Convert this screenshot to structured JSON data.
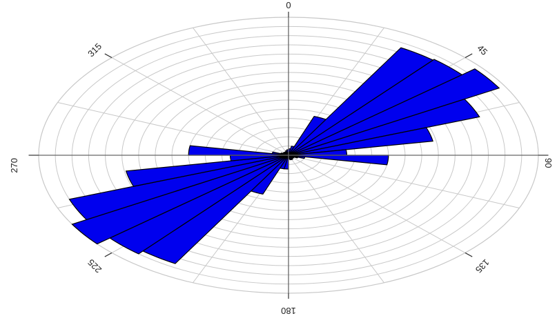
{
  "chart_data": {
    "type": "rose",
    "title": "",
    "bin_width_deg": 10,
    "angular_ticks": [
      {
        "angle": 0,
        "label": "0"
      },
      {
        "angle": 45,
        "label": "45"
      },
      {
        "angle": 90,
        "label": "90"
      },
      {
        "angle": 135,
        "label": "135"
      },
      {
        "angle": 180,
        "label": "180"
      },
      {
        "angle": 225,
        "label": "225"
      },
      {
        "angle": 270,
        "label": "270"
      },
      {
        "angle": 315,
        "label": "315"
      }
    ],
    "radial_rings": 15,
    "radial_max": 15,
    "spokes_every_deg": 22.5,
    "grid": true,
    "bins": [
      {
        "start": 0,
        "value": 0.7
      },
      {
        "start": 10,
        "value": 1.0
      },
      {
        "start": 20,
        "value": 4.5
      },
      {
        "start": 30,
        "value": 13.5
      },
      {
        "start": 40,
        "value": 13.6
      },
      {
        "start": 50,
        "value": 14.6
      },
      {
        "start": 60,
        "value": 12.2
      },
      {
        "start": 70,
        "value": 8.8
      },
      {
        "start": 80,
        "value": 3.5
      },
      {
        "start": 90,
        "value": 6.0
      },
      {
        "start": 100,
        "value": 1.0
      },
      {
        "start": 110,
        "value": 0.6
      },
      {
        "start": 120,
        "value": 0.4
      },
      {
        "start": 130,
        "value": 0.4
      },
      {
        "start": 140,
        "value": 0.4
      },
      {
        "start": 150,
        "value": 0.5
      },
      {
        "start": 160,
        "value": 0.5
      },
      {
        "start": 170,
        "value": 0.4
      },
      {
        "start": 180,
        "value": 1.5
      },
      {
        "start": 190,
        "value": 1.5
      },
      {
        "start": 200,
        "value": 4.5
      },
      {
        "start": 210,
        "value": 13.6
      },
      {
        "start": 220,
        "value": 14.0
      },
      {
        "start": 230,
        "value": 15.0
      },
      {
        "start": 240,
        "value": 14.0
      },
      {
        "start": 250,
        "value": 9.9
      },
      {
        "start": 260,
        "value": 3.5
      },
      {
        "start": 270,
        "value": 6.0
      },
      {
        "start": 280,
        "value": 1.0
      },
      {
        "start": 290,
        "value": 0.5
      },
      {
        "start": 300,
        "value": 0.4
      },
      {
        "start": 310,
        "value": 0.4
      },
      {
        "start": 320,
        "value": 0.4
      },
      {
        "start": 330,
        "value": 0.4
      },
      {
        "start": 340,
        "value": 0.5
      },
      {
        "start": 350,
        "value": 0.6
      }
    ],
    "colors": {
      "petal_fill": "#0000ee",
      "petal_stroke": "#000000",
      "grid": "#c8c8c8",
      "axis": "#666666"
    }
  }
}
